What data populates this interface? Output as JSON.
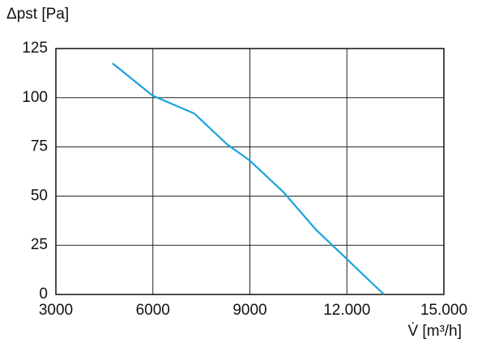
{
  "chart_data": {
    "type": "line",
    "y_label": "Δpst [Pa]",
    "x_label": "V̇ [m³/h]",
    "series": [
      {
        "color": "#1aa3dc",
        "x": [
          4750,
          6000,
          7280,
          8280,
          9000,
          10040,
          11040,
          12000,
          12670,
          13150
        ],
        "values": [
          117.5,
          101,
          92,
          76.5,
          68,
          52,
          33,
          18,
          7.4,
          0
        ]
      }
    ],
    "xlim": [
      3000,
      15000
    ],
    "xticks": [
      3000,
      6000,
      9000,
      {
        "value": 12000,
        "label": "12.000"
      },
      {
        "value": 15000,
        "label": "15.000"
      }
    ],
    "ylim": [
      0,
      125
    ],
    "yticks": [
      0,
      25,
      50,
      75,
      100,
      125
    ],
    "grid": true
  }
}
